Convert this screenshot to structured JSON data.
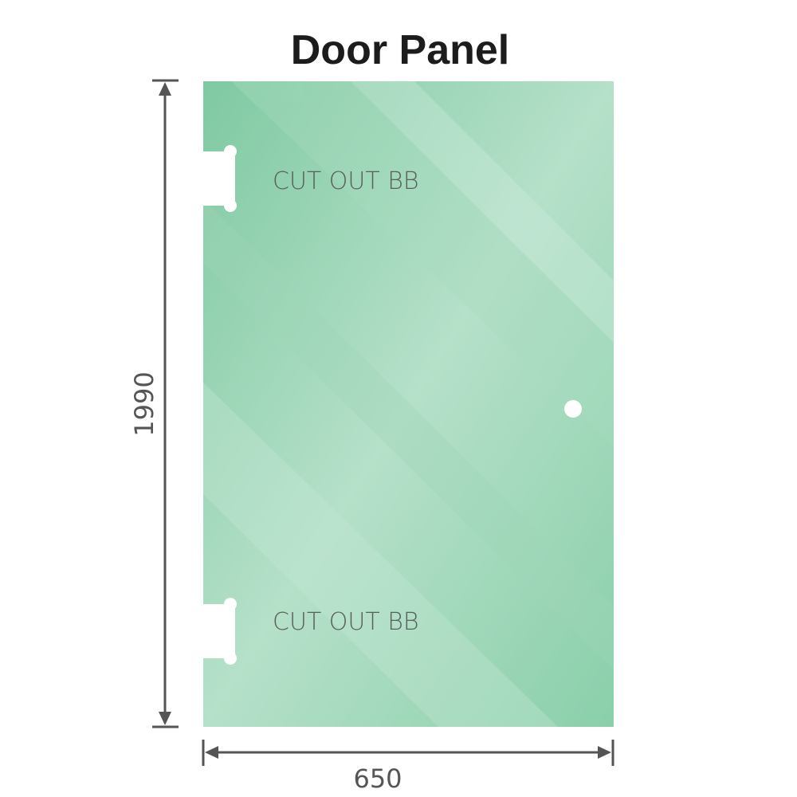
{
  "title": "Door Panel",
  "panel": {
    "cutout_top_label": "CUT OUT BB",
    "cutout_bottom_label": "CUT OUT BB",
    "glass_color": "#88cca8"
  },
  "dimensions": {
    "height": "1990",
    "width": "650"
  }
}
